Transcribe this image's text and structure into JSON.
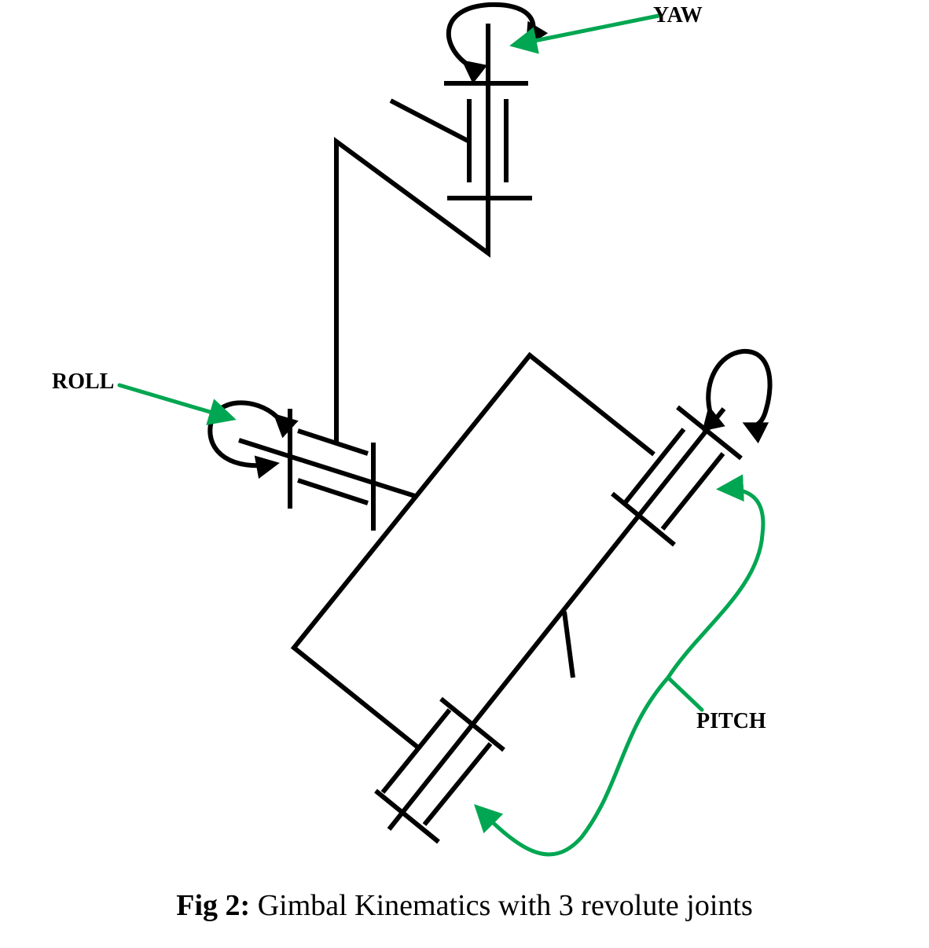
{
  "labels": {
    "yaw": "YAW",
    "roll": "ROLL",
    "pitch": "PITCH"
  },
  "caption": {
    "prefix": "Fig 2:",
    "text": "Gimbal Kinematics with 3 revolute joints"
  },
  "colors": {
    "structure": "#000000",
    "pointer": "#00a651",
    "background": "#ffffff"
  }
}
